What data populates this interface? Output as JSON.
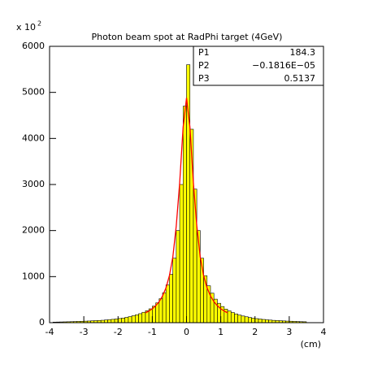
{
  "chart_data": {
    "type": "histogram",
    "title": "Photon beam spot at RadPhi target (4GeV)",
    "xlabel": "(cm)",
    "y_multiplier": "x 10",
    "y_multiplier_exp": "2",
    "color": "#ffff00",
    "edge_color": "#000000",
    "bins": [
      -4.0,
      -3.9,
      -3.8,
      -3.7,
      -3.6,
      -3.5,
      -3.4,
      -3.3,
      -3.2,
      -3.1,
      -3.0,
      -2.9,
      -2.8,
      -2.7,
      -2.6,
      -2.5,
      -2.4,
      -2.3,
      -2.2,
      -2.1,
      -2.0,
      -1.9,
      -1.8,
      -1.7,
      -1.6,
      -1.5,
      -1.4,
      -1.3,
      -1.2,
      -1.1,
      -1.0,
      -0.9,
      -0.8,
      -0.7,
      -0.6,
      -0.5,
      -0.4,
      -0.3,
      -0.2,
      -0.1,
      0.0,
      0.1,
      0.2,
      0.3,
      0.4,
      0.5,
      0.6,
      0.7,
      0.8,
      0.9,
      1.0,
      1.1,
      1.2,
      1.3,
      1.4,
      1.5,
      1.6,
      1.7,
      1.8,
      1.9,
      2.0,
      2.1,
      2.2,
      2.3,
      2.4,
      2.5,
      2.6,
      2.7,
      2.8,
      2.9,
      3.0,
      3.1,
      3.2,
      3.3,
      3.4,
      3.5,
      3.6,
      3.7,
      3.8,
      3.9,
      4.0
    ],
    "values": [
      0,
      12,
      14,
      16,
      18,
      20,
      22,
      25,
      28,
      30,
      33,
      36,
      40,
      44,
      48,
      52,
      58,
      64,
      72,
      80,
      90,
      100,
      115,
      130,
      150,
      170,
      195,
      225,
      260,
      300,
      360,
      430,
      520,
      650,
      820,
      1050,
      1400,
      2000,
      3000,
      4700,
      5600,
      4200,
      2900,
      2000,
      1400,
      1020,
      800,
      640,
      510,
      420,
      350,
      295,
      255,
      220,
      190,
      165,
      145,
      128,
      112,
      98,
      88,
      78,
      70,
      62,
      56,
      50,
      46,
      42,
      38,
      34,
      31,
      28,
      25,
      22,
      20,
      0,
      0,
      0,
      0,
      0
    ],
    "fit": {
      "color": "#ff0000",
      "x": [
        -1.2,
        -1.1,
        -1.0,
        -0.9,
        -0.8,
        -0.7,
        -0.6,
        -0.5,
        -0.4,
        -0.3,
        -0.2,
        -0.1,
        0.0,
        0.1,
        0.2,
        0.3,
        0.4,
        0.5,
        0.6,
        0.7,
        0.8,
        0.9,
        1.0,
        1.1,
        1.2
      ],
      "values": [
        214,
        253,
        302,
        368,
        456,
        580,
        757,
        1020,
        1427,
        2102,
        3039,
        4240,
        4880,
        4240,
        3039,
        2102,
        1427,
        1020,
        757,
        580,
        456,
        368,
        302,
        253,
        214
      ]
    },
    "stats": [
      {
        "name": "P1",
        "value": "184.3"
      },
      {
        "name": "P2",
        "value": "−0.1816E−05"
      },
      {
        "name": "P3",
        "value": "0.5137"
      }
    ],
    "xlim": [
      -4,
      4
    ],
    "xticks": [
      -4,
      -3,
      -2,
      -1,
      0,
      1,
      2,
      3,
      4
    ],
    "ylim": [
      0,
      6000
    ],
    "yticks": [
      0,
      1000,
      2000,
      3000,
      4000,
      5000,
      6000
    ]
  }
}
